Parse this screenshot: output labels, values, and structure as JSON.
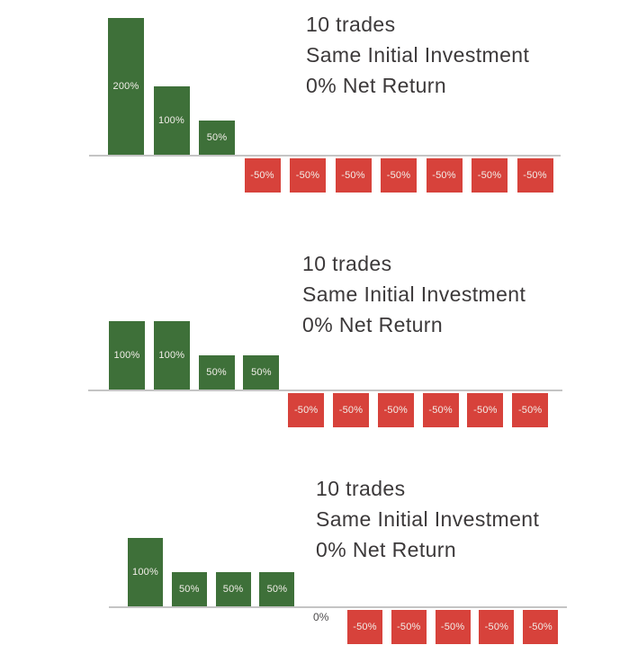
{
  "page": {
    "background": "#ffffff"
  },
  "colors": {
    "positive_bar": "#3e7039",
    "negative_bar": "#d7423b",
    "bar_label": "#f2eee9",
    "axis_line": "#c4c4c4",
    "annotation_text": "#3c393a",
    "zero_label": "#4d4b4c"
  },
  "chart_data": [
    {
      "type": "bar",
      "annotation_lines": [
        "10 trades",
        "Same Initial Investment",
        "0% Net Return"
      ],
      "unit": "%",
      "values": [
        200,
        100,
        50,
        -50,
        -50,
        -50,
        -50,
        -50,
        -50,
        -50
      ],
      "bar_labels": [
        "200%",
        "100%",
        "50%",
        "-50%",
        "-50%",
        "-50%",
        "-50%",
        "-50%",
        "-50%",
        "-50%"
      ],
      "ylim": [
        -50,
        200
      ],
      "grid": false,
      "legend": false,
      "x_axis_labels": false
    },
    {
      "type": "bar",
      "annotation_lines": [
        "10 trades",
        "Same Initial Investment",
        "0% Net Return"
      ],
      "unit": "%",
      "values": [
        100,
        100,
        50,
        50,
        -50,
        -50,
        -50,
        -50,
        -50,
        -50
      ],
      "bar_labels": [
        "100%",
        "100%",
        "50%",
        "50%",
        "-50%",
        "-50%",
        "-50%",
        "-50%",
        "-50%",
        "-50%"
      ],
      "ylim": [
        -50,
        100
      ],
      "grid": false,
      "legend": false,
      "x_axis_labels": false
    },
    {
      "type": "bar",
      "annotation_lines": [
        "10 trades",
        "Same Initial Investment",
        "0% Net Return"
      ],
      "unit": "%",
      "values": [
        100,
        50,
        50,
        50,
        0,
        -50,
        -50,
        -50,
        -50,
        -50
      ],
      "bar_labels": [
        "100%",
        "50%",
        "50%",
        "50%",
        "0%",
        "-50%",
        "-50%",
        "-50%",
        "-50%",
        "-50%"
      ],
      "ylim": [
        -50,
        100
      ],
      "grid": false,
      "legend": false,
      "x_axis_labels": false
    }
  ]
}
